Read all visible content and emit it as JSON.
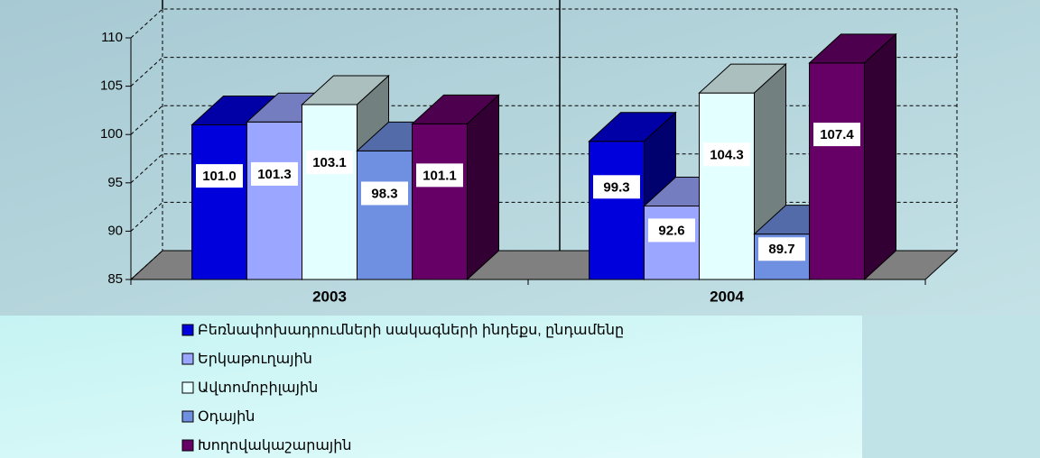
{
  "chart_data": {
    "type": "bar3d",
    "categories": [
      "2003",
      "2004"
    ],
    "ylim": [
      85,
      110
    ],
    "yticks": [
      85,
      90,
      95,
      100,
      105,
      110
    ],
    "grid": true,
    "legend": "bottom-left",
    "series": [
      {
        "name": "Բեռնափոխադրումների սակագների ինդեքս, ընդամենը",
        "color": "#0000dd",
        "values": [
          101.0,
          99.3
        ],
        "value_labels": [
          "101.0",
          "99.3"
        ]
      },
      {
        "name": "Երկաթուղային",
        "color": "#9aa6ff",
        "values": [
          101.3,
          92.6
        ],
        "value_labels": [
          "101.3",
          "92.6"
        ]
      },
      {
        "name": "Ավտոմոբիլային",
        "color": "#e4ffff",
        "values": [
          103.1,
          104.3
        ],
        "value_labels": [
          "103.1",
          "104.3"
        ]
      },
      {
        "name": "Օդային",
        "color": "#6f8fe0",
        "values": [
          98.3,
          89.7
        ],
        "value_labels": [
          "98.3",
          "89.7"
        ]
      },
      {
        "name": "Խողովակաշարային",
        "color": "#660066",
        "values": [
          101.1,
          107.4
        ],
        "value_labels": [
          "101.1",
          "107.4"
        ]
      }
    ]
  }
}
